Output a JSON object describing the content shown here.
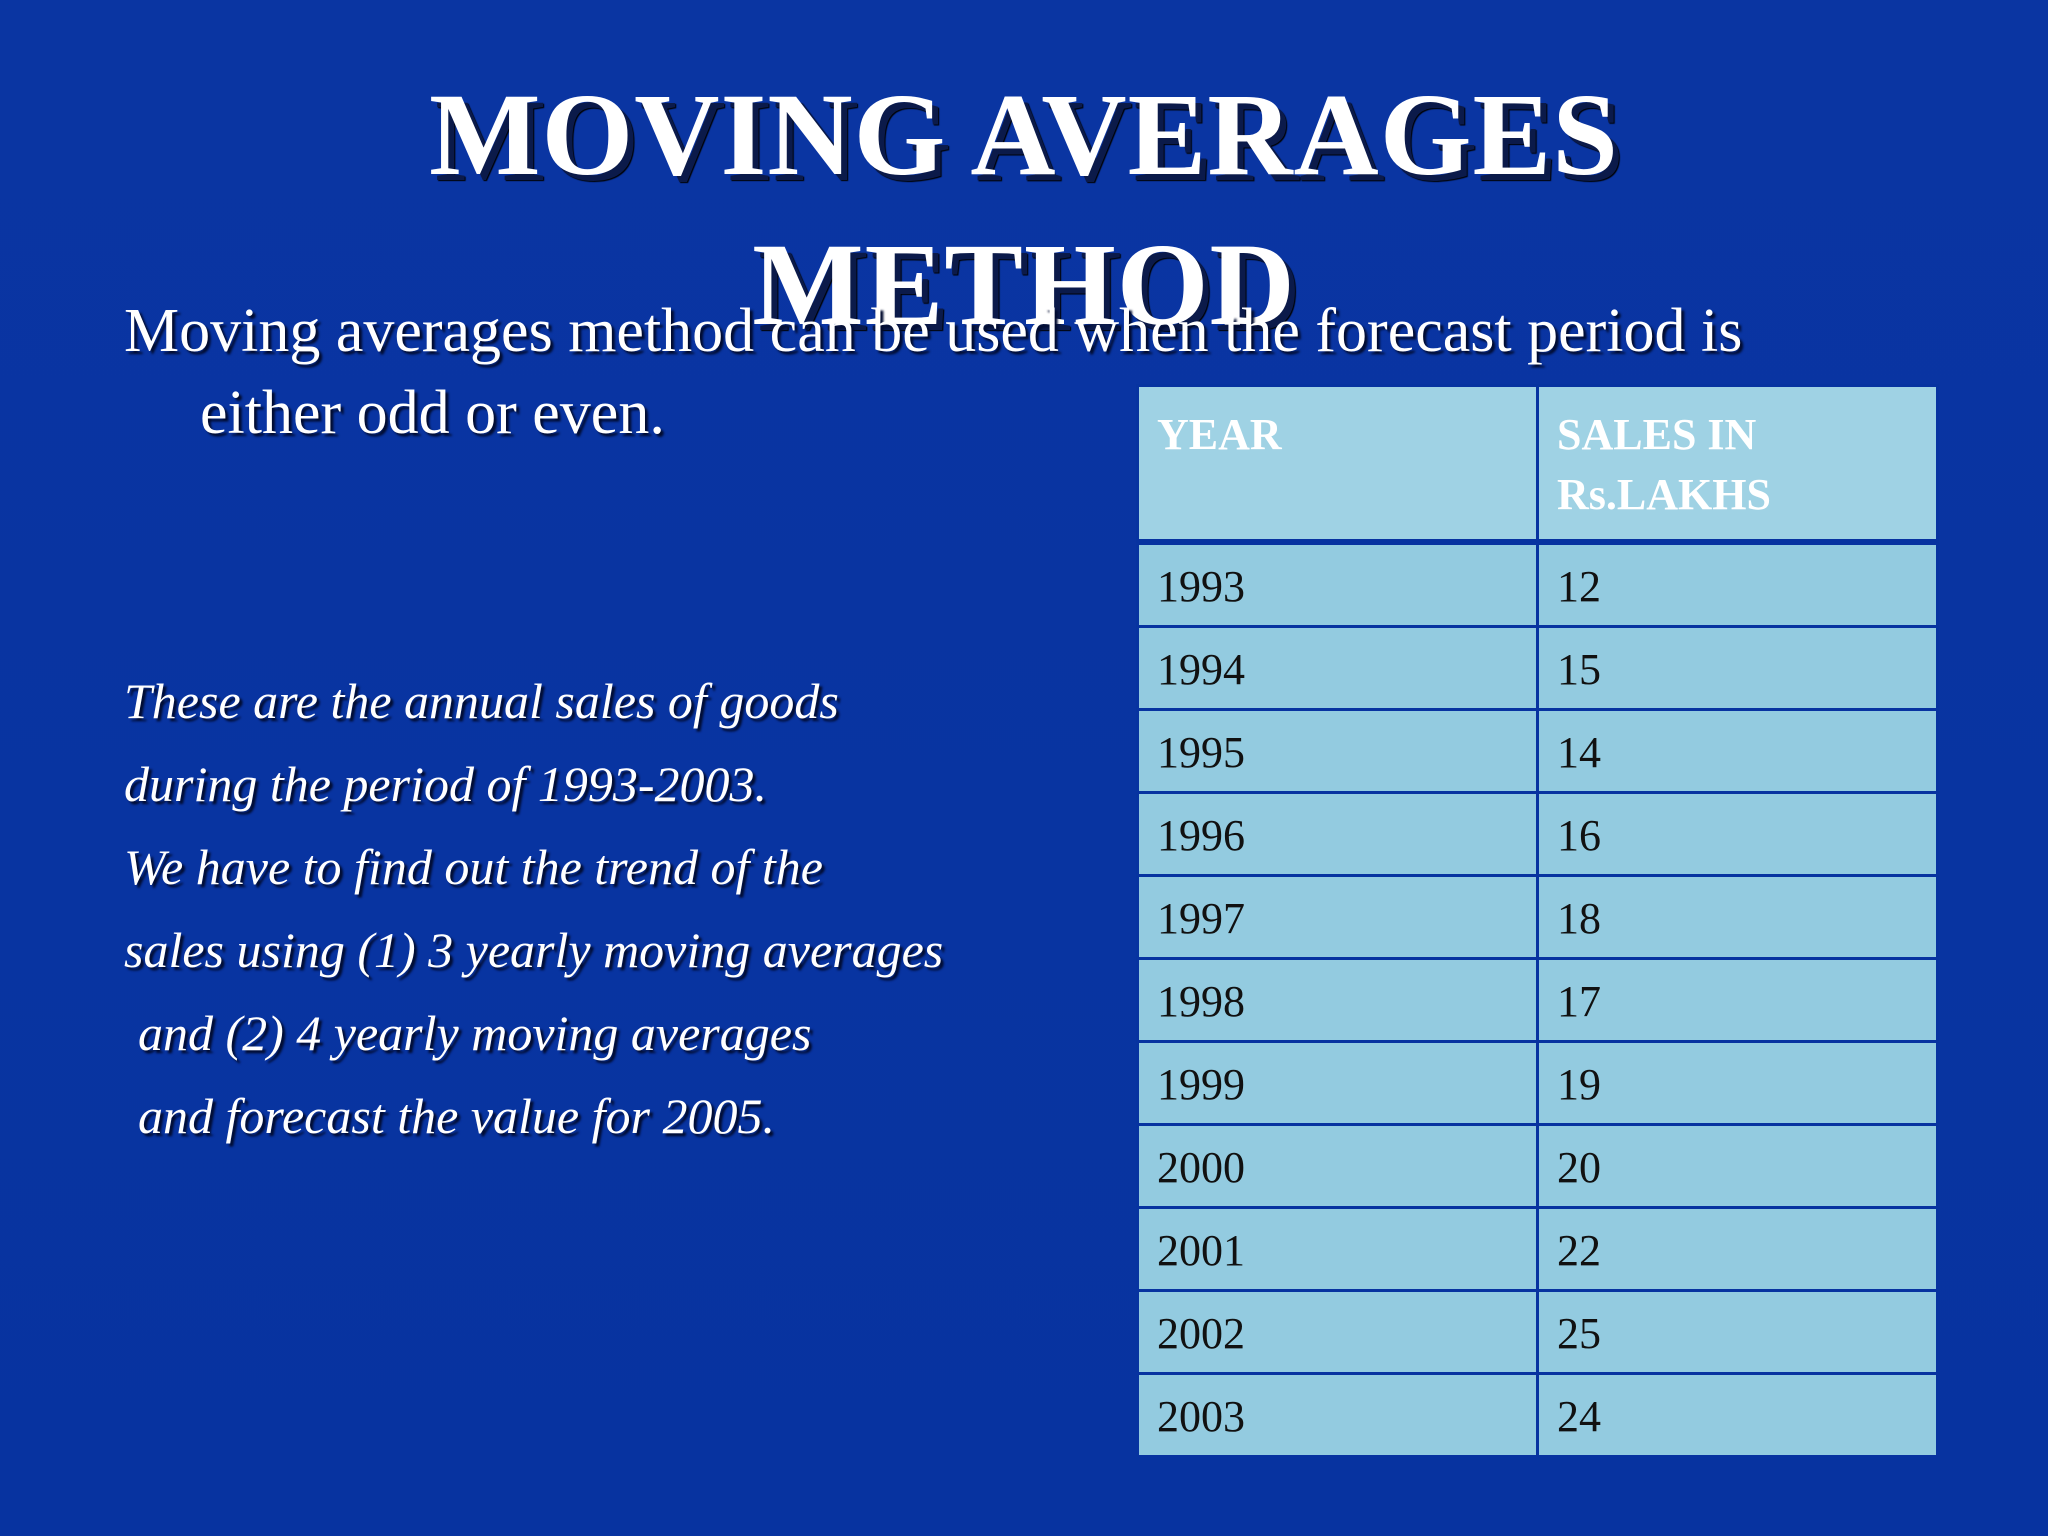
{
  "slide": {
    "title_line1": "MOVING AVERAGES",
    "title_line2": "METHOD",
    "intro_line1": "Moving averages method can be used when the forecast period is",
    "intro_line2": "either odd or even.",
    "description": [
      "These are the annual sales of goods",
      "during the period of 1993-2003.",
      "We have to find out the trend of the",
      "sales using (1) 3 yearly moving averages",
      "and (2) 4 yearly moving averages",
      "and forecast the value for 2005."
    ]
  },
  "table": {
    "headers": [
      "YEAR",
      "SALES IN Rs.LAKHS"
    ],
    "rows": [
      [
        "1993",
        "12"
      ],
      [
        "1994",
        "15"
      ],
      [
        "1995",
        "14"
      ],
      [
        "1996",
        "16"
      ],
      [
        "1997",
        "18"
      ],
      [
        "1998",
        "17"
      ],
      [
        "1999",
        "19"
      ],
      [
        "2000",
        "20"
      ],
      [
        "2001",
        "22"
      ],
      [
        "2002",
        "25"
      ],
      [
        "2003",
        "24"
      ]
    ]
  },
  "colors": {
    "background": "#0733a0",
    "table_cell": "#93cbe0",
    "title_text": "#ffffff"
  }
}
